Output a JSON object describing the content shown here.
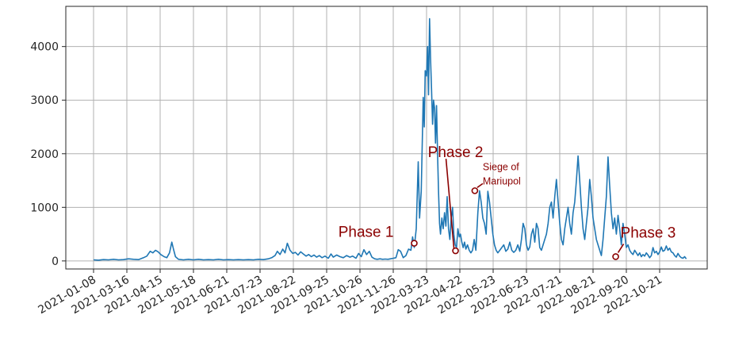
{
  "chart_data": {
    "type": "line",
    "title": "",
    "xlabel": "",
    "ylabel": "",
    "ylim": [
      -150,
      4750
    ],
    "yticks": [
      0,
      1000,
      2000,
      3000,
      4000
    ],
    "ytick_labels": [
      "0",
      "1000",
      "2000",
      "3000",
      "4000"
    ],
    "xticks": [
      "2021-01-08",
      "2021-03-16",
      "2021-04-15",
      "2021-05-18",
      "2021-06-21",
      "2021-07-23",
      "2021-08-22",
      "2021-09-25",
      "2021-10-26",
      "2021-11-26",
      "2022-03-23",
      "2022-04-22",
      "2022-05-23",
      "2022-06-23",
      "2022-07-21",
      "2022-08-21",
      "2022-09-20",
      "2022-10-21"
    ],
    "grid": true,
    "line_color": "#1f77b4",
    "annotation_color": "#8b0000",
    "series": [
      {
        "values": [
          [
            0,
            20
          ],
          [
            1.5,
            15
          ],
          [
            3,
            25
          ],
          [
            4.5,
            20
          ],
          [
            6,
            30
          ],
          [
            7.5,
            20
          ],
          [
            9,
            25
          ],
          [
            10.5,
            40
          ],
          [
            12,
            30
          ],
          [
            13.5,
            25
          ],
          [
            15,
            60
          ],
          [
            16,
            90
          ],
          [
            17,
            180
          ],
          [
            17.8,
            150
          ],
          [
            18.6,
            200
          ],
          [
            19.4,
            170
          ],
          [
            20.2,
            120
          ],
          [
            21.2,
            80
          ],
          [
            22,
            60
          ],
          [
            22.8,
            150
          ],
          [
            23.5,
            350
          ],
          [
            24,
            220
          ],
          [
            24.6,
            80
          ],
          [
            25.5,
            30
          ],
          [
            27,
            20
          ],
          [
            28.5,
            30
          ],
          [
            30,
            20
          ],
          [
            31.5,
            30
          ],
          [
            33,
            20
          ],
          [
            34.5,
            25
          ],
          [
            36,
            20
          ],
          [
            37.5,
            30
          ],
          [
            39,
            20
          ],
          [
            40.5,
            25
          ],
          [
            42,
            20
          ],
          [
            43.5,
            25
          ],
          [
            45,
            20
          ],
          [
            46.5,
            25
          ],
          [
            48,
            20
          ],
          [
            49.5,
            30
          ],
          [
            51,
            25
          ],
          [
            52.5,
            40
          ],
          [
            53.5,
            60
          ],
          [
            54.5,
            100
          ],
          [
            55.2,
            180
          ],
          [
            56,
            120
          ],
          [
            56.8,
            220
          ],
          [
            57.5,
            150
          ],
          [
            58.2,
            330
          ],
          [
            59,
            200
          ],
          [
            59.8,
            140
          ],
          [
            60.6,
            160
          ],
          [
            61.4,
            110
          ],
          [
            62.2,
            170
          ],
          [
            63,
            130
          ],
          [
            63.8,
            90
          ],
          [
            64.6,
            120
          ],
          [
            65.4,
            80
          ],
          [
            66.2,
            110
          ],
          [
            67,
            70
          ],
          [
            67.8,
            100
          ],
          [
            68.6,
            60
          ],
          [
            69.5,
            90
          ],
          [
            70.5,
            50
          ],
          [
            71.3,
            130
          ],
          [
            72,
            70
          ],
          [
            73,
            110
          ],
          [
            74,
            80
          ],
          [
            75,
            60
          ],
          [
            76,
            100
          ],
          [
            77,
            70
          ],
          [
            77.8,
            90
          ],
          [
            78.8,
            50
          ],
          [
            79.6,
            140
          ],
          [
            80.4,
            80
          ],
          [
            81.2,
            210
          ],
          [
            82,
            120
          ],
          [
            82.8,
            180
          ],
          [
            83.6,
            70
          ],
          [
            84.4,
            40
          ],
          [
            85.2,
            30
          ],
          [
            86,
            40
          ],
          [
            86.8,
            30
          ],
          [
            87.6,
            35
          ],
          [
            88.4,
            30
          ],
          [
            89.2,
            40
          ],
          [
            90,
            50
          ],
          [
            90.8,
            60
          ],
          [
            91.5,
            210
          ],
          [
            92.2,
            180
          ],
          [
            93,
            60
          ],
          [
            93.8,
            100
          ],
          [
            94.6,
            220
          ],
          [
            95.3,
            200
          ],
          [
            95.8,
            450
          ],
          [
            96.3,
            250
          ],
          [
            96.9,
            600
          ],
          [
            97.5,
            1850
          ],
          [
            97.9,
            800
          ],
          [
            98.4,
            1300
          ],
          [
            99,
            3050
          ],
          [
            99.3,
            2500
          ],
          [
            99.6,
            3550
          ],
          [
            100,
            3450
          ],
          [
            100.3,
            4000
          ],
          [
            100.6,
            3100
          ],
          [
            100.9,
            4520
          ],
          [
            101.2,
            3800
          ],
          [
            101.5,
            3200
          ],
          [
            101.8,
            2550
          ],
          [
            102.1,
            3000
          ],
          [
            102.4,
            2850
          ],
          [
            102.7,
            2200
          ],
          [
            103,
            2900
          ],
          [
            103.3,
            2000
          ],
          [
            103.6,
            1300
          ],
          [
            103.9,
            700
          ],
          [
            104.2,
            500
          ],
          [
            104.6,
            800
          ],
          [
            105,
            600
          ],
          [
            105.4,
            900
          ],
          [
            105.8,
            650
          ],
          [
            106.2,
            1200
          ],
          [
            106.6,
            600
          ],
          [
            107,
            400
          ],
          [
            107.4,
            800
          ],
          [
            107.8,
            1000
          ],
          [
            108.2,
            500
          ],
          [
            108.6,
            300
          ],
          [
            109,
            250
          ],
          [
            109.4,
            600
          ],
          [
            109.8,
            450
          ],
          [
            110.2,
            500
          ],
          [
            110.6,
            350
          ],
          [
            111,
            250
          ],
          [
            111.4,
            350
          ],
          [
            111.8,
            220
          ],
          [
            112.3,
            300
          ],
          [
            112.8,
            200
          ],
          [
            113.3,
            150
          ],
          [
            113.8,
            200
          ],
          [
            114.3,
            400
          ],
          [
            114.8,
            200
          ],
          [
            115.4,
            900
          ],
          [
            115.9,
            1310
          ],
          [
            116.4,
            1100
          ],
          [
            116.9,
            800
          ],
          [
            117.4,
            700
          ],
          [
            117.9,
            500
          ],
          [
            118.4,
            1300
          ],
          [
            118.9,
            1100
          ],
          [
            119.4,
            800
          ],
          [
            119.9,
            500
          ],
          [
            120.4,
            300
          ],
          [
            120.9,
            200
          ],
          [
            121.4,
            150
          ],
          [
            122,
            200
          ],
          [
            122.6,
            250
          ],
          [
            123.2,
            300
          ],
          [
            123.8,
            180
          ],
          [
            124.4,
            220
          ],
          [
            125,
            350
          ],
          [
            125.6,
            200
          ],
          [
            126.2,
            160
          ],
          [
            126.8,
            200
          ],
          [
            127.4,
            300
          ],
          [
            128,
            180
          ],
          [
            128.5,
            400
          ],
          [
            129,
            700
          ],
          [
            129.5,
            600
          ],
          [
            130,
            300
          ],
          [
            130.5,
            200
          ],
          [
            131,
            260
          ],
          [
            131.5,
            500
          ],
          [
            132,
            600
          ],
          [
            132.5,
            350
          ],
          [
            133,
            700
          ],
          [
            133.5,
            600
          ],
          [
            134,
            250
          ],
          [
            134.5,
            200
          ],
          [
            135,
            300
          ],
          [
            135.5,
            400
          ],
          [
            136,
            500
          ],
          [
            136.5,
            700
          ],
          [
            137,
            1000
          ],
          [
            137.5,
            1100
          ],
          [
            138,
            800
          ],
          [
            138.5,
            1200
          ],
          [
            139,
            1520
          ],
          [
            139.5,
            1100
          ],
          [
            140,
            700
          ],
          [
            140.5,
            400
          ],
          [
            141,
            300
          ],
          [
            141.5,
            600
          ],
          [
            142,
            800
          ],
          [
            142.5,
            1000
          ],
          [
            143,
            700
          ],
          [
            143.5,
            500
          ],
          [
            144,
            900
          ],
          [
            144.5,
            1100
          ],
          [
            145,
            1500
          ],
          [
            145.5,
            1960
          ],
          [
            146,
            1500
          ],
          [
            146.5,
            1000
          ],
          [
            147,
            600
          ],
          [
            147.5,
            400
          ],
          [
            148,
            700
          ],
          [
            148.5,
            1000
          ],
          [
            149,
            1520
          ],
          [
            149.5,
            1200
          ],
          [
            150,
            800
          ],
          [
            150.5,
            600
          ],
          [
            151,
            400
          ],
          [
            151.5,
            300
          ],
          [
            152,
            200
          ],
          [
            152.5,
            100
          ],
          [
            153,
            400
          ],
          [
            153.5,
            800
          ],
          [
            154,
            1200
          ],
          [
            154.5,
            1940
          ],
          [
            155,
            1400
          ],
          [
            155.5,
            900
          ],
          [
            156,
            600
          ],
          [
            156.5,
            800
          ],
          [
            157,
            500
          ],
          [
            157.5,
            850
          ],
          [
            158,
            600
          ],
          [
            158.5,
            300
          ],
          [
            159,
            700
          ],
          [
            159.5,
            500
          ],
          [
            160,
            250
          ],
          [
            160.5,
            300
          ],
          [
            161,
            200
          ],
          [
            161.5,
            150
          ],
          [
            162,
            120
          ],
          [
            162.5,
            200
          ],
          [
            163,
            150
          ],
          [
            163.5,
            100
          ],
          [
            164,
            150
          ],
          [
            164.5,
            80
          ],
          [
            165,
            120
          ],
          [
            165.5,
            90
          ],
          [
            166,
            150
          ],
          [
            166.5,
            110
          ],
          [
            167,
            60
          ],
          [
            167.5,
            100
          ],
          [
            168,
            250
          ],
          [
            168.5,
            150
          ],
          [
            169,
            180
          ],
          [
            169.5,
            120
          ],
          [
            170,
            170
          ],
          [
            170.5,
            260
          ],
          [
            171,
            180
          ],
          [
            171.5,
            200
          ],
          [
            172,
            280
          ],
          [
            172.5,
            200
          ],
          [
            173,
            240
          ],
          [
            173.5,
            170
          ],
          [
            174,
            150
          ],
          [
            174.5,
            100
          ],
          [
            175,
            70
          ],
          [
            175.5,
            140
          ],
          [
            176,
            90
          ],
          [
            176.5,
            60
          ],
          [
            177,
            50
          ],
          [
            177.5,
            80
          ],
          [
            178,
            40
          ]
        ]
      }
    ],
    "annotations": [
      {
        "label": "Phase 1",
        "marker": [
          96.3,
          330
        ]
      },
      {
        "label": "Phase 2",
        "marker": [
          108.7,
          190
        ]
      },
      {
        "label": "Siege of",
        "label2": "Mariupol",
        "marker": [
          114.5,
          1310
        ]
      },
      {
        "label": "Phase 3",
        "marker": [
          156.8,
          80
        ]
      }
    ]
  }
}
